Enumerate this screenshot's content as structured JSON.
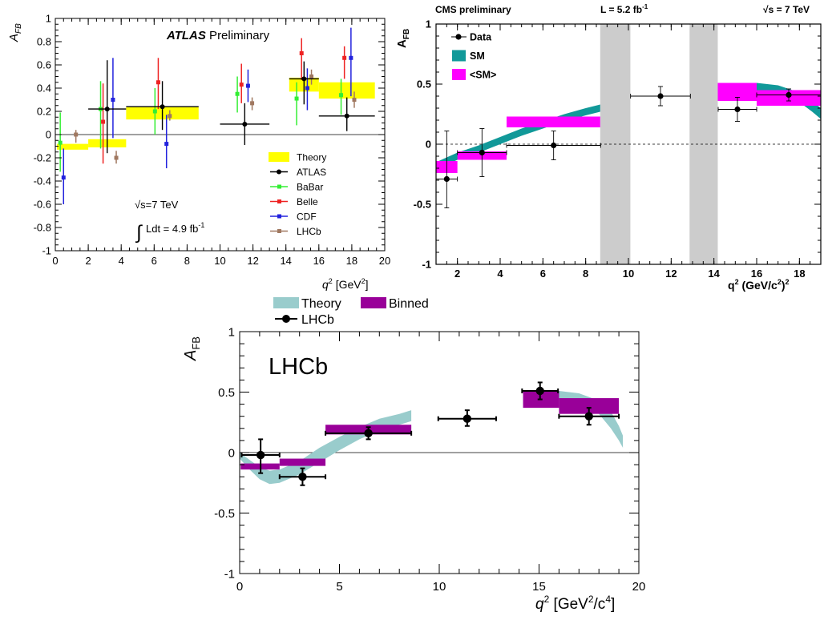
{
  "chart_data": [
    {
      "id": "atlas",
      "type": "scatter",
      "title_bold": "ATLAS",
      "title_rest": " Preliminary",
      "xlabel_main": "q",
      "xlabel_sup": "2",
      "xlabel_unit": " [GeV",
      "xlabel_unit_sup": "2",
      "xlabel_close": "]",
      "ylabel_main": "A",
      "ylabel_sub": "FB",
      "xlim": [
        0,
        20
      ],
      "ylim": [
        -1,
        1
      ],
      "xticks": [
        "0",
        "2",
        "4",
        "6",
        "8",
        "10",
        "12",
        "14",
        "16",
        "18",
        "20"
      ],
      "yticks": [
        "-1",
        "-0.8",
        "-0.6",
        "-0.4",
        "-0.2",
        "0",
        "0.2",
        "0.4",
        "0.6",
        "0.8",
        "1"
      ],
      "annotation_energy": "√s=7 TeV",
      "annotation_lumi": "Ldt = 4.9 fb",
      "annotation_lumi_sup": "-1",
      "annotation_integral": "∫",
      "legend": [
        {
          "label": "Theory",
          "kind": "box",
          "color": "#ffff00"
        },
        {
          "label": "ATLAS",
          "kind": "marker",
          "color": "#000000"
        },
        {
          "label": "BaBar",
          "kind": "marker",
          "color": "#33ee33"
        },
        {
          "label": "Belle",
          "kind": "marker",
          "color": "#ee2222"
        },
        {
          "label": "CDF",
          "kind": "marker",
          "color": "#2222dd"
        },
        {
          "label": "LHCb",
          "kind": "marker",
          "color": "#a07860"
        }
      ],
      "theory_bins": [
        {
          "x0": 0.1,
          "x1": 2.0,
          "lo": -0.13,
          "hi": -0.08
        },
        {
          "x0": 2.0,
          "x1": 4.3,
          "lo": -0.11,
          "hi": -0.04
        },
        {
          "x0": 4.3,
          "x1": 8.7,
          "lo": 0.13,
          "hi": 0.24
        },
        {
          "x0": 14.2,
          "x1": 16.0,
          "lo": 0.37,
          "hi": 0.49
        },
        {
          "x0": 16.0,
          "x1": 19.4,
          "lo": 0.31,
          "hi": 0.45
        }
      ],
      "series": [
        {
          "name": "ATLAS",
          "color": "#000000",
          "points": [
            {
              "x": 3.15,
              "y": 0.22,
              "xerr": 1.15,
              "ylo": 0.38,
              "yhi": 0.42
            },
            {
              "x": 6.5,
              "y": 0.24,
              "xerr": 2.2,
              "ylo": 0.2,
              "yhi": 0.22
            },
            {
              "x": 11.5,
              "y": 0.09,
              "xerr": 1.5,
              "ylo": 0.18,
              "yhi": 0.18
            },
            {
              "x": 15.1,
              "y": 0.48,
              "xerr": 0.9,
              "ylo": 0.22,
              "yhi": 0.15
            },
            {
              "x": 17.7,
              "y": 0.16,
              "xerr": 1.7,
              "ylo": 0.13,
              "yhi": 0.16
            }
          ]
        },
        {
          "name": "BaBar",
          "color": "#33ee33",
          "points": [
            {
              "x": 0.3,
              "y": -0.07,
              "xerr": 0,
              "ylo": 0.25,
              "yhi": 0.26
            },
            {
              "x": 2.75,
              "y": 0.22,
              "xerr": 0,
              "ylo": 0.34,
              "yhi": 0.24
            },
            {
              "x": 6.05,
              "y": 0.2,
              "xerr": 0,
              "ylo": 0.2,
              "yhi": 0.2
            },
            {
              "x": 11.05,
              "y": 0.35,
              "xerr": 0,
              "ylo": 0.16,
              "yhi": 0.15
            },
            {
              "x": 14.65,
              "y": 0.31,
              "xerr": 0,
              "ylo": 0.23,
              "yhi": 0.14
            },
            {
              "x": 17.35,
              "y": 0.34,
              "xerr": 0,
              "ylo": 0.17,
              "yhi": 0.14
            }
          ]
        },
        {
          "name": "Belle",
          "color": "#ee2222",
          "points": [
            {
              "x": 2.9,
              "y": 0.11,
              "xerr": 0,
              "ylo": 0.36,
              "yhi": 0.33
            },
            {
              "x": 6.25,
              "y": 0.45,
              "xerr": 0,
              "ylo": 0.23,
              "yhi": 0.21
            },
            {
              "x": 11.3,
              "y": 0.43,
              "xerr": 0,
              "ylo": 0.16,
              "yhi": 0.18
            },
            {
              "x": 14.95,
              "y": 0.7,
              "xerr": 0,
              "ylo": 0.23,
              "yhi": 0.13
            },
            {
              "x": 17.55,
              "y": 0.66,
              "xerr": 0,
              "ylo": 0.18,
              "yhi": 0.1
            }
          ]
        },
        {
          "name": "CDF",
          "color": "#2222dd",
          "points": [
            {
              "x": 0.5,
              "y": -0.37,
              "xerr": 0,
              "ylo": 0.23,
              "yhi": 0.25
            },
            {
              "x": 3.5,
              "y": 0.3,
              "xerr": 0,
              "ylo": 0.33,
              "yhi": 0.36
            },
            {
              "x": 6.75,
              "y": -0.08,
              "xerr": 0,
              "ylo": 0.21,
              "yhi": 0.25
            },
            {
              "x": 11.7,
              "y": 0.42,
              "xerr": 0,
              "ylo": 0.14,
              "yhi": 0.14
            },
            {
              "x": 15.3,
              "y": 0.4,
              "xerr": 0,
              "ylo": 0.19,
              "yhi": 0.17
            },
            {
              "x": 17.95,
              "y": 0.66,
              "xerr": 0,
              "ylo": 0.33,
              "yhi": 0.26
            }
          ]
        },
        {
          "name": "LHCb",
          "color": "#a07860",
          "points": [
            {
              "x": 1.25,
              "y": 0.0,
              "xerr": 0,
              "ylo": 0.07,
              "yhi": 0.04
            },
            {
              "x": 3.7,
              "y": -0.2,
              "xerr": 0,
              "ylo": 0.05,
              "yhi": 0.06
            },
            {
              "x": 6.95,
              "y": 0.16,
              "xerr": 0,
              "ylo": 0.04,
              "yhi": 0.05
            },
            {
              "x": 11.95,
              "y": 0.27,
              "xerr": 0,
              "ylo": 0.06,
              "yhi": 0.05
            },
            {
              "x": 15.55,
              "y": 0.5,
              "xerr": 0,
              "ylo": 0.07,
              "yhi": 0.06
            },
            {
              "x": 18.15,
              "y": 0.3,
              "xerr": 0,
              "ylo": 0.07,
              "yhi": 0.07
            }
          ]
        }
      ]
    },
    {
      "id": "cms",
      "type": "scatter",
      "header_left": "CMS preliminary",
      "header_mid": "L = 5.2 fb",
      "header_mid_sup": "-1",
      "header_right": "√s = 7 TeV",
      "xlabel_main": "q",
      "xlabel_sup": "2",
      "xlabel_unit": " (GeV/c",
      "xlabel_unit_sup": "2",
      "xlabel_close": ")",
      "xlabel_close_sup": "2",
      "ylabel_main": "A",
      "ylabel_sub": "FB",
      "xlim": [
        1,
        19
      ],
      "ylim": [
        -1,
        1
      ],
      "xticks": [
        "2",
        "4",
        "6",
        "8",
        "10",
        "12",
        "14",
        "16",
        "18"
      ],
      "yticks": [
        "-1",
        "-0.5",
        "0",
        "0.5",
        "1"
      ],
      "legend": [
        {
          "label": "Data",
          "kind": "marker",
          "color": "#000000"
        },
        {
          "label": "SM",
          "kind": "box",
          "color": "#119999"
        },
        {
          "label": "<SM>",
          "kind": "box",
          "color": "#ff00ff"
        }
      ],
      "vetoed_regions": [
        [
          8.68,
          10.09
        ],
        [
          12.86,
          14.18
        ]
      ],
      "sm_band_lo": [
        [
          1.0,
          -0.21
        ],
        [
          1.5,
          -0.17
        ],
        [
          2.0,
          -0.13
        ],
        [
          3.0,
          -0.07
        ],
        [
          4.0,
          0.0
        ],
        [
          5.0,
          0.07
        ],
        [
          6.0,
          0.13
        ],
        [
          7.0,
          0.19
        ],
        [
          8.0,
          0.24
        ],
        [
          8.68,
          0.27
        ]
      ],
      "sm_band_hi": [
        [
          1.0,
          -0.15
        ],
        [
          1.5,
          -0.11
        ],
        [
          2.0,
          -0.07
        ],
        [
          3.0,
          -0.01
        ],
        [
          4.0,
          0.06
        ],
        [
          5.0,
          0.13
        ],
        [
          6.0,
          0.19
        ],
        [
          7.0,
          0.25
        ],
        [
          8.0,
          0.3
        ],
        [
          8.68,
          0.33
        ]
      ],
      "sm_band2_lo": [
        [
          14.18,
          0.43
        ],
        [
          15.0,
          0.45
        ],
        [
          16.0,
          0.45
        ],
        [
          17.0,
          0.42
        ],
        [
          18.0,
          0.35
        ],
        [
          18.6,
          0.27
        ],
        [
          19.0,
          0.21
        ]
      ],
      "sm_band2_hi": [
        [
          14.18,
          0.49
        ],
        [
          15.0,
          0.51
        ],
        [
          16.0,
          0.51
        ],
        [
          17.0,
          0.49
        ],
        [
          18.0,
          0.43
        ],
        [
          18.6,
          0.36
        ],
        [
          19.0,
          0.3
        ]
      ],
      "avg_bins": [
        {
          "x0": 1.0,
          "x1": 2.0,
          "lo": -0.24,
          "hi": -0.14
        },
        {
          "x0": 2.0,
          "x1": 4.3,
          "lo": -0.13,
          "hi": -0.06
        },
        {
          "x0": 4.3,
          "x1": 8.68,
          "lo": 0.14,
          "hi": 0.23
        },
        {
          "x0": 14.18,
          "x1": 16.0,
          "lo": 0.36,
          "hi": 0.51
        },
        {
          "x0": 16.0,
          "x1": 19.0,
          "lo": 0.32,
          "hi": 0.45
        }
      ],
      "series": [
        {
          "name": "Data",
          "color": "#000000",
          "points": [
            {
              "x": 1.5,
              "y": -0.29,
              "xerr": 0.5,
              "ylo": 0.24,
              "yhi": 0.4
            },
            {
              "x": 3.15,
              "y": -0.07,
              "xerr": 1.15,
              "ylo": 0.2,
              "yhi": 0.2
            },
            {
              "x": 6.5,
              "y": -0.01,
              "xerr": 2.2,
              "ylo": 0.12,
              "yhi": 0.12
            },
            {
              "x": 11.5,
              "y": 0.4,
              "xerr": 1.4,
              "ylo": 0.08,
              "yhi": 0.08
            },
            {
              "x": 15.1,
              "y": 0.29,
              "xerr": 0.9,
              "ylo": 0.1,
              "yhi": 0.1
            },
            {
              "x": 17.5,
              "y": 0.41,
              "xerr": 1.5,
              "ylo": 0.05,
              "yhi": 0.05
            }
          ]
        }
      ]
    },
    {
      "id": "lhcb",
      "type": "scatter",
      "inner_title": "LHCb",
      "xlabel_main": "q",
      "xlabel_sup": "2",
      "xlabel_unit": " [GeV",
      "xlabel_unit_sup": "2",
      "xlabel_mid": "/c",
      "xlabel_mid_sup": "4",
      "xlabel_close": "]",
      "ylabel_main": "A",
      "ylabel_sub": "FB",
      "xlim": [
        0,
        20
      ],
      "ylim": [
        -1,
        1
      ],
      "xticks": [
        "0",
        "5",
        "10",
        "15",
        "20"
      ],
      "yticks": [
        "-1",
        "-0.5",
        "0",
        "0.5",
        "1"
      ],
      "legend": [
        {
          "label": "Theory",
          "kind": "box",
          "color": "#99cccc"
        },
        {
          "label": "Binned",
          "kind": "box",
          "color": "#990099"
        },
        {
          "label": "LHCb",
          "kind": "marker",
          "color": "#000000"
        }
      ],
      "theory_band_lo": [
        [
          0,
          -0.05
        ],
        [
          0.5,
          -0.14
        ],
        [
          1.0,
          -0.22
        ],
        [
          1.5,
          -0.26
        ],
        [
          2.0,
          -0.25
        ],
        [
          3.0,
          -0.18
        ],
        [
          4.0,
          -0.08
        ],
        [
          5.0,
          0.02
        ],
        [
          6.0,
          0.11
        ],
        [
          7.0,
          0.18
        ],
        [
          8.0,
          0.23
        ],
        [
          8.6,
          0.26
        ]
      ],
      "theory_band_hi": [
        [
          0,
          0.0
        ],
        [
          0.5,
          -0.06
        ],
        [
          1.0,
          -0.12
        ],
        [
          1.5,
          -0.15
        ],
        [
          2.0,
          -0.14
        ],
        [
          3.0,
          -0.07
        ],
        [
          4.0,
          0.04
        ],
        [
          5.0,
          0.13
        ],
        [
          6.0,
          0.21
        ],
        [
          7.0,
          0.28
        ],
        [
          8.0,
          0.32
        ],
        [
          8.6,
          0.35
        ]
      ],
      "theory_band2_lo": [
        [
          14.2,
          0.4
        ],
        [
          15.0,
          0.43
        ],
        [
          16.0,
          0.45
        ],
        [
          17.0,
          0.42
        ],
        [
          18.0,
          0.32
        ],
        [
          18.6,
          0.2
        ],
        [
          19.0,
          0.1
        ],
        [
          19.2,
          0.04
        ]
      ],
      "theory_band2_hi": [
        [
          14.2,
          0.46
        ],
        [
          15.0,
          0.49
        ],
        [
          16.0,
          0.51
        ],
        [
          17.0,
          0.49
        ],
        [
          18.0,
          0.43
        ],
        [
          18.6,
          0.34
        ],
        [
          19.0,
          0.22
        ],
        [
          19.2,
          0.14
        ]
      ],
      "binned": [
        {
          "x0": 0.05,
          "x1": 2.0,
          "lo": -0.14,
          "hi": -0.09
        },
        {
          "x0": 2.0,
          "x1": 4.3,
          "lo": -0.11,
          "hi": -0.05
        },
        {
          "x0": 4.3,
          "x1": 8.6,
          "lo": 0.15,
          "hi": 0.23
        },
        {
          "x0": 14.2,
          "x1": 16.0,
          "lo": 0.37,
          "hi": 0.51
        },
        {
          "x0": 16.0,
          "x1": 19.0,
          "lo": 0.32,
          "hi": 0.45
        }
      ],
      "series": [
        {
          "name": "LHCb",
          "color": "#000000",
          "points": [
            {
              "x": 1.05,
              "y": -0.02,
              "xerr": 0.95,
              "ylo": 0.15,
              "yhi": 0.13
            },
            {
              "x": 3.15,
              "y": -0.2,
              "xerr": 1.15,
              "ylo": 0.07,
              "yhi": 0.07
            },
            {
              "x": 6.45,
              "y": 0.16,
              "xerr": 2.15,
              "ylo": 0.05,
              "yhi": 0.05
            },
            {
              "x": 11.4,
              "y": 0.28,
              "xerr": 1.45,
              "ylo": 0.06,
              "yhi": 0.07
            },
            {
              "x": 15.05,
              "y": 0.51,
              "xerr": 0.9,
              "ylo": 0.07,
              "yhi": 0.07
            },
            {
              "x": 17.5,
              "y": 0.3,
              "xerr": 1.5,
              "ylo": 0.07,
              "yhi": 0.07
            }
          ]
        }
      ]
    }
  ]
}
